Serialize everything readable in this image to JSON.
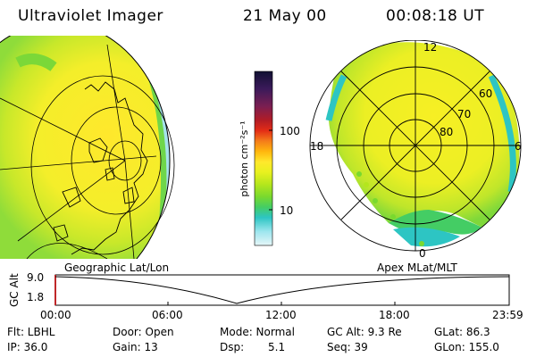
{
  "header": {
    "instrument": "Ultraviolet Imager",
    "date": "21 May 00",
    "time": "00:08:18 UT"
  },
  "colorbar": {
    "unit_label": "photon cm⁻²s⁻¹",
    "tick_labels": [
      "100",
      "10"
    ],
    "colors": [
      "#111133",
      "#3b1a5a",
      "#7a1f52",
      "#b11c26",
      "#e32c16",
      "#f47c1a",
      "#ffb60e",
      "#ffe82c",
      "#e8f11f",
      "#b4e61d",
      "#79d92e",
      "#44cd64",
      "#2dc5c3",
      "#9de6ee",
      "#e6f6f8"
    ]
  },
  "polar_map": {
    "mlt_labels": [
      "12",
      "18",
      "6",
      "0"
    ],
    "mlat_labels": [
      "60",
      "70",
      "80"
    ]
  },
  "map_labels": {
    "left": "Geographic Lat/Lon",
    "right": "Apex MLat/MLT"
  },
  "altitude_plot": {
    "ylabel": "GC Alt",
    "y_ticks": [
      "9.0",
      "1.8"
    ],
    "x_ticks": [
      "00:00",
      "06:00",
      "12:00",
      "18:00",
      "23:59"
    ]
  },
  "info": {
    "row1": {
      "filter": "Flt: LBHL",
      "door": "Door: Open",
      "mode": "Mode: Normal",
      "gc_alt": "GC Alt: 9.3 Re",
      "glat": "GLat: 86.3"
    },
    "row2": {
      "ip": "IP: 36.0",
      "gain": "Gain: 13",
      "dsp_label": "Dsp:",
      "dsp_value": "5.1",
      "seq": "Seq: 39",
      "glon": "GLon: 155.0"
    }
  }
}
